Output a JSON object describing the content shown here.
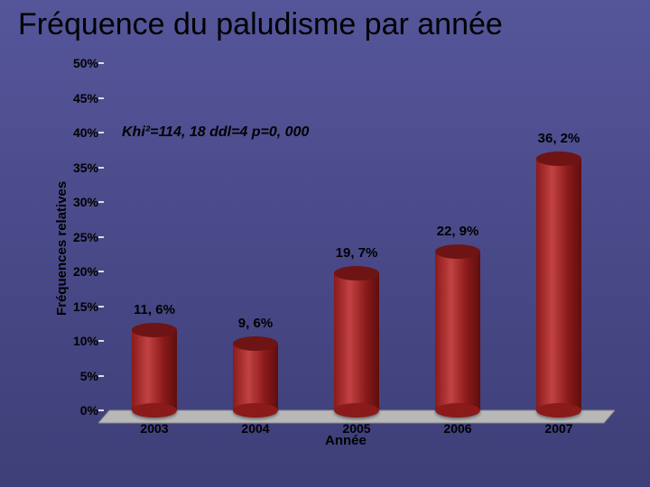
{
  "slide": {
    "background_color": "#4a4a8a",
    "background_gradient_top": "#55559a",
    "background_gradient_bottom": "#3e3e78"
  },
  "title": {
    "text": "Fréquence du paludisme par année",
    "color": "#000000",
    "fontsize": 34,
    "font_weight": "normal"
  },
  "chart": {
    "type": "bar",
    "style": "3d-cylinder",
    "ylabel": "Fréquences relatives",
    "xlabel": "Année",
    "axis_label_fontsize": 15,
    "axis_label_color": "#000000",
    "tick_fontsize": 14,
    "tick_color": "#000000",
    "categories": [
      "2003",
      "2004",
      "2005",
      "2006",
      "2007"
    ],
    "values_percent": [
      11.6,
      9.6,
      19.7,
      22.9,
      36.2
    ],
    "value_labels": [
      "11, 6%",
      "9, 6%",
      "19, 7%",
      "22, 9%",
      "36, 2%"
    ],
    "ylim": [
      0,
      50
    ],
    "ytick_step": 5,
    "yticks": [
      "0%",
      "5%",
      "10%",
      "15%",
      "20%",
      "25%",
      "30%",
      "35%",
      "40%",
      "45%",
      "50%"
    ],
    "bar_fill_color": "#8b1a1a",
    "bar_highlight_color": "#c24242",
    "bar_top_color": "#6e1414",
    "bar_width_ratio": 0.45,
    "value_label_color": "#000000",
    "value_label_fontsize": 15,
    "floor_color": "#b8b8b8",
    "floor_edge_color": "#8a8a8a",
    "tick_mark_color": "#dddddd"
  },
  "annotation": {
    "text": "Khi²=114, 18  ddl=4  p=0, 000",
    "color": "#000000",
    "fontsize": 16
  }
}
